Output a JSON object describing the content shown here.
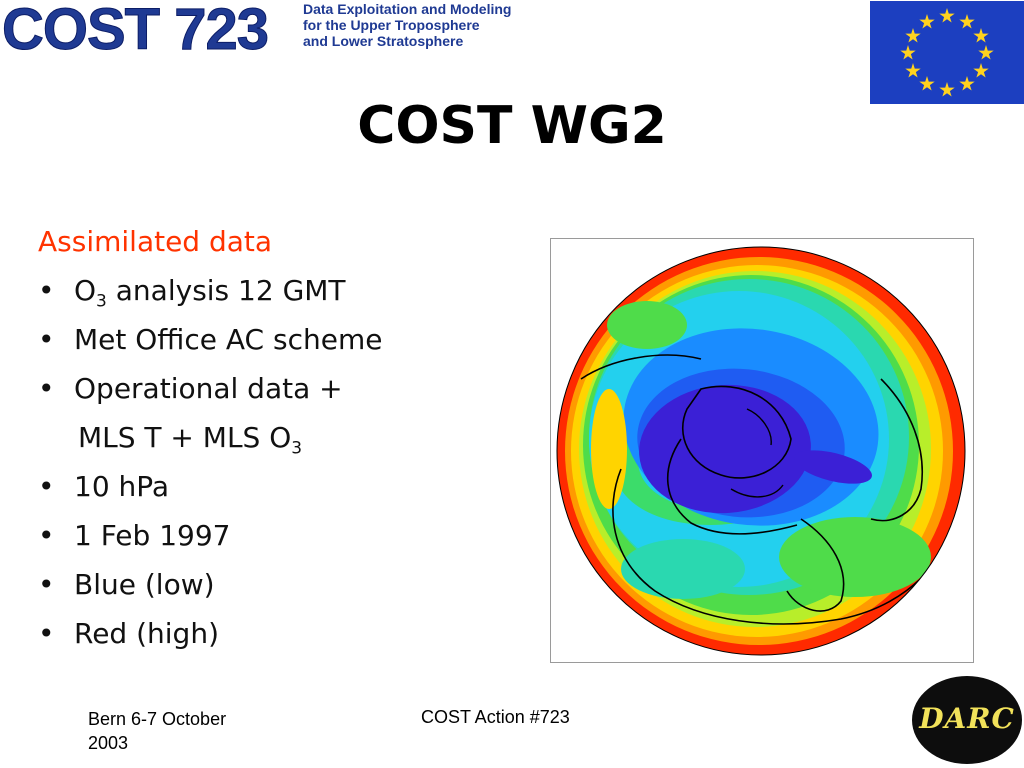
{
  "header": {
    "logo_text": "COST 723",
    "logo_tagline": [
      "Data Exploitation and Modeling",
      "for the Upper Troposphere",
      "and Lower Stratosphere"
    ],
    "flag_icon": "eu-flag-icon"
  },
  "title": "COST WG2",
  "content": {
    "heading": "Assimilated data",
    "bullet_symbol": "•",
    "items": [
      {
        "prefix": "O",
        "sub": "3",
        "rest": " analysis 12 GMT"
      },
      {
        "text": "Met Office AC scheme"
      },
      {
        "text": "Operational data +"
      },
      {
        "text": "MLS T + MLS O",
        "sub": "3"
      },
      {
        "text": "10 hPa"
      },
      {
        "text": "1 Feb 1997"
      },
      {
        "text": "Blue (low)"
      },
      {
        "text": "Red (high)"
      }
    ]
  },
  "figure": {
    "icon": "polar-ozone-map-icon",
    "colors": [
      "#ff2a00",
      "#ffcc00",
      "#9be82c",
      "#2fd86a",
      "#22d6e8",
      "#1e6cff",
      "#3a1fd9"
    ]
  },
  "footer": {
    "left_line1": "Bern 6-7 October",
    "left_line2": "2003",
    "center": "COST Action #723",
    "logo_text": "DARC"
  }
}
